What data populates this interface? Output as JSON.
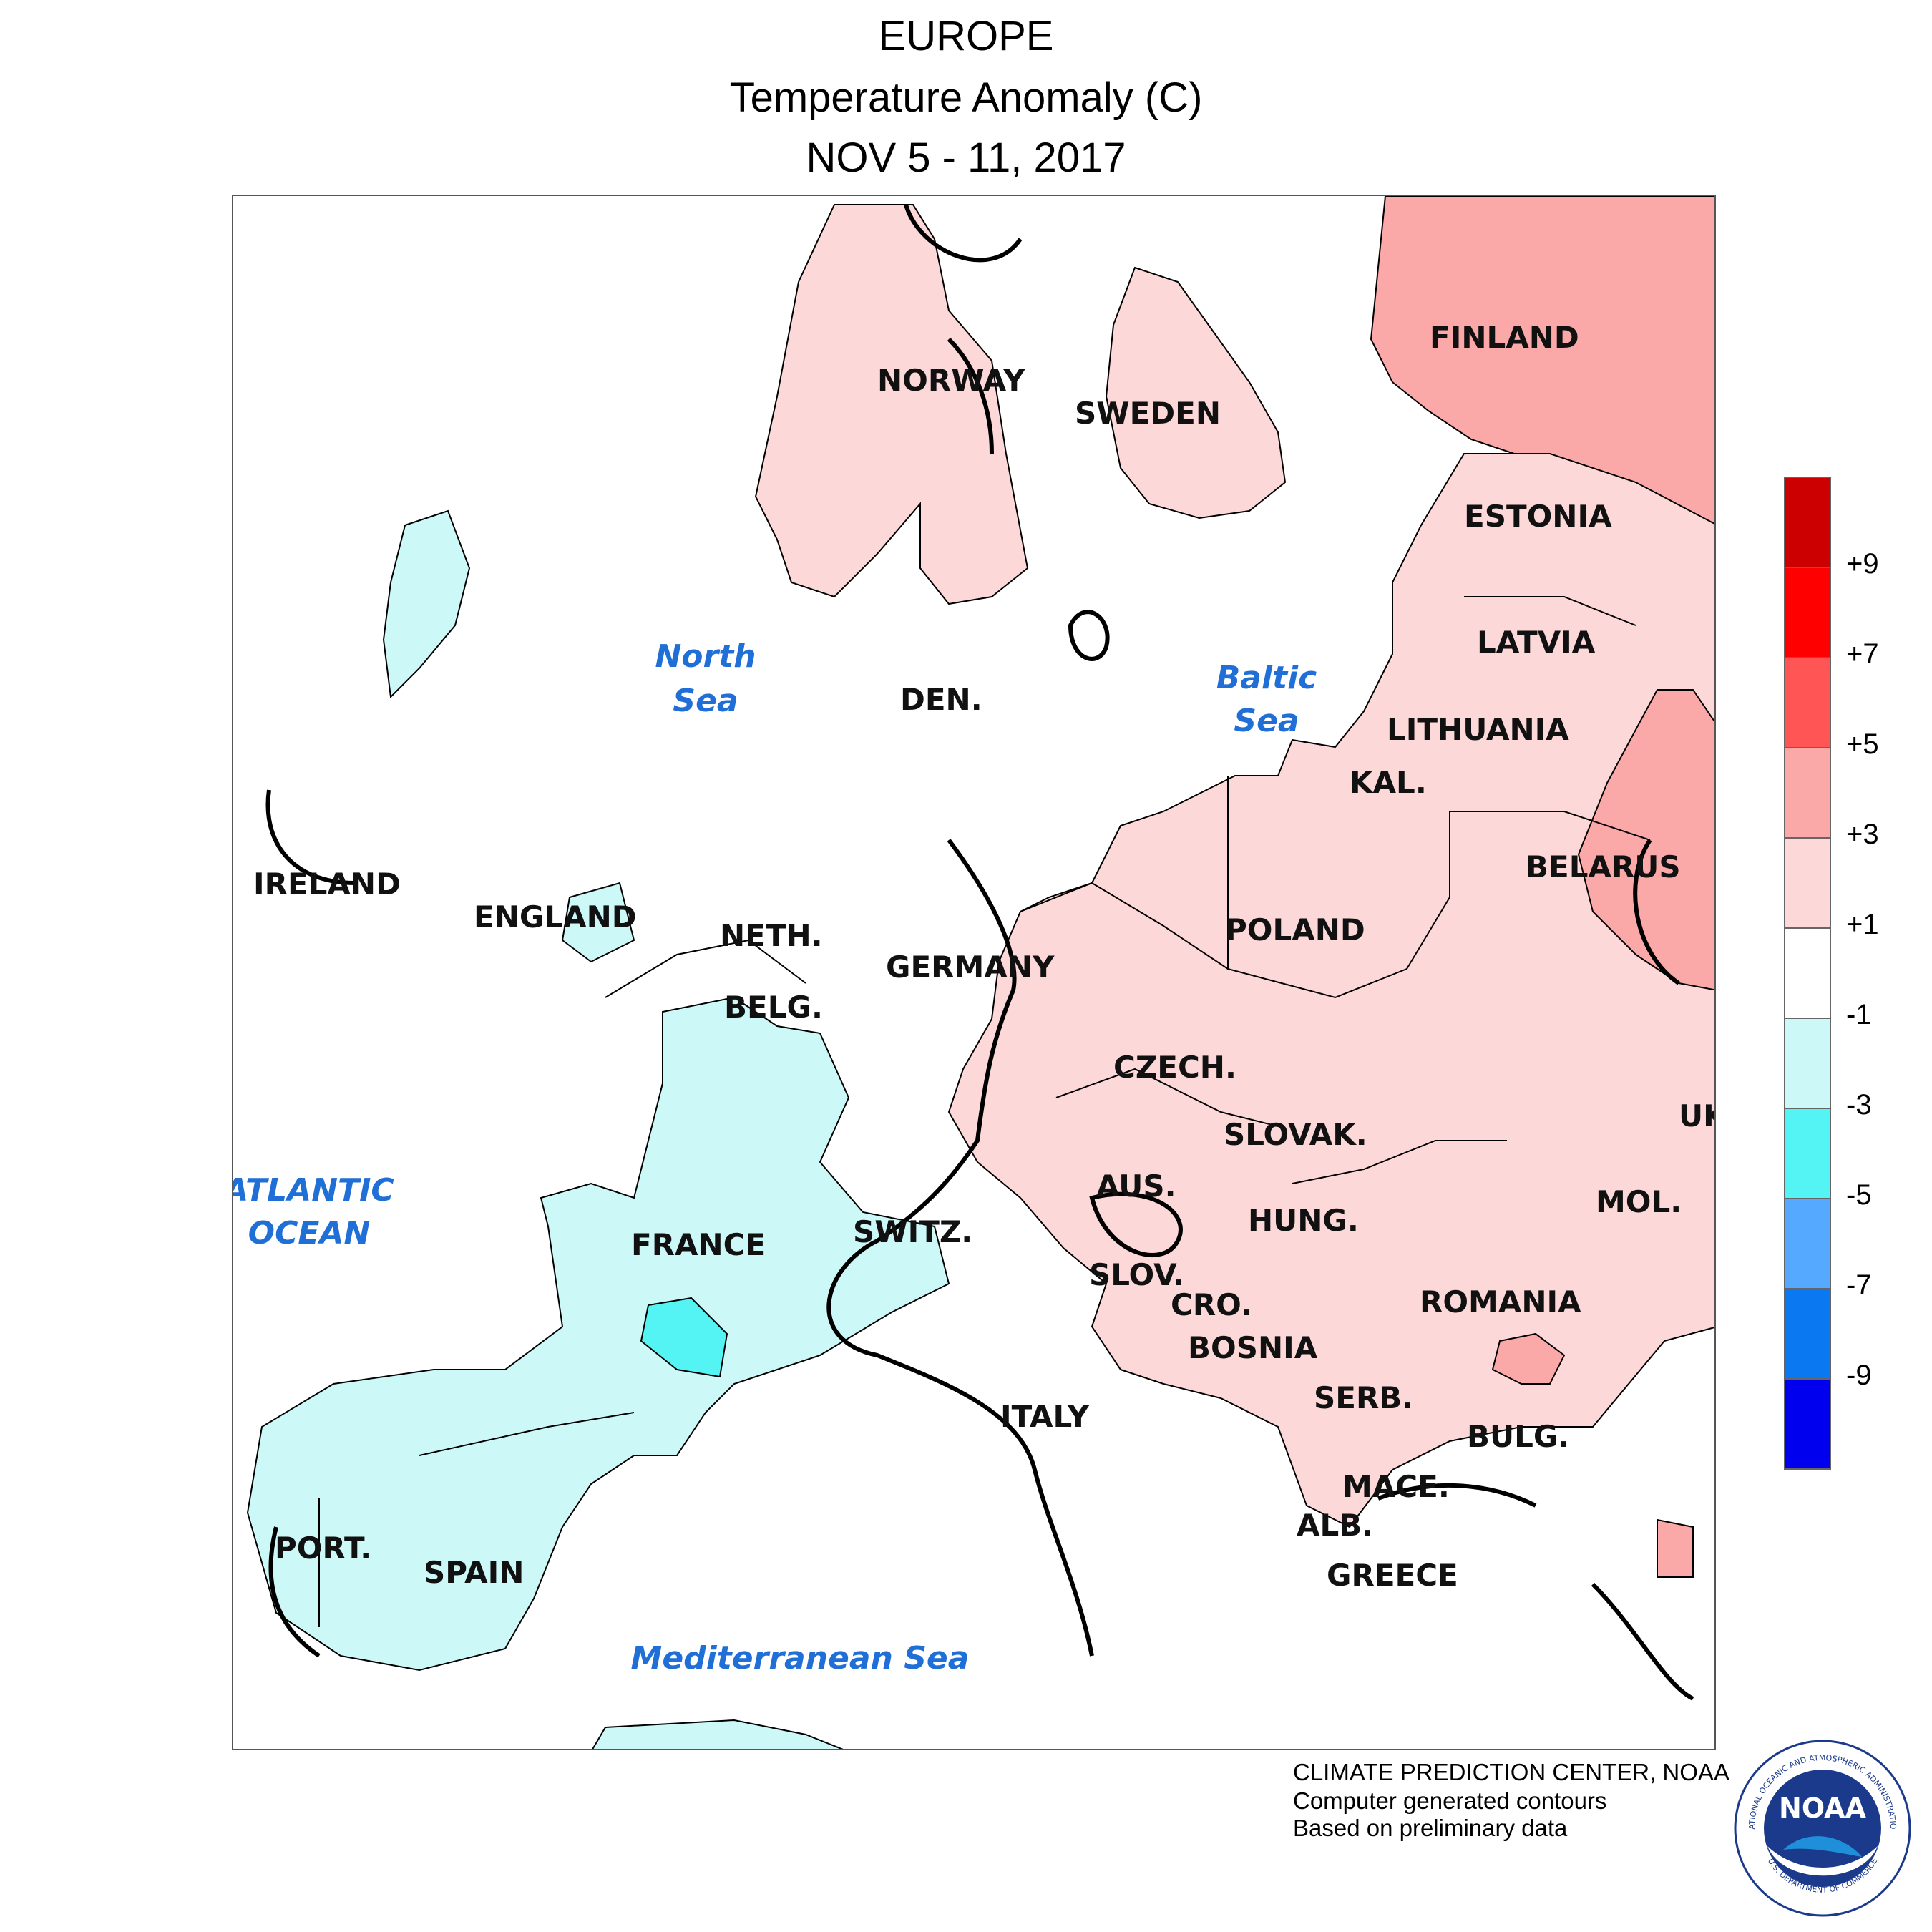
{
  "title": {
    "line1": "EUROPE",
    "line2": "Temperature Anomaly (C)",
    "line3": "NOV 5 - 11, 2017"
  },
  "countries": [
    {
      "id": "norway",
      "label": "NORWAY"
    },
    {
      "id": "sweden",
      "label": "SWEDEN"
    },
    {
      "id": "finland",
      "label": "FINLAND"
    },
    {
      "id": "estonia",
      "label": "ESTONIA"
    },
    {
      "id": "latvia",
      "label": "LATVIA"
    },
    {
      "id": "lithuania",
      "label": "LITHUANIA"
    },
    {
      "id": "kal",
      "label": "KAL."
    },
    {
      "id": "belarus",
      "label": "BELARUS"
    },
    {
      "id": "poland",
      "label": "POLAND"
    },
    {
      "id": "den",
      "label": "DEN."
    },
    {
      "id": "ireland",
      "label": "IRELAND"
    },
    {
      "id": "england",
      "label": "ENGLAND"
    },
    {
      "id": "neth",
      "label": "NETH."
    },
    {
      "id": "belg",
      "label": "BELG."
    },
    {
      "id": "germany",
      "label": "GERMANY"
    },
    {
      "id": "czech",
      "label": "CZECH."
    },
    {
      "id": "slovak",
      "label": "SLOVAK."
    },
    {
      "id": "uk",
      "label": "UK"
    },
    {
      "id": "aus",
      "label": "AUS."
    },
    {
      "id": "hung",
      "label": "HUNG."
    },
    {
      "id": "mol",
      "label": "MOL."
    },
    {
      "id": "france",
      "label": "FRANCE"
    },
    {
      "id": "switz",
      "label": "SWITZ."
    },
    {
      "id": "slov",
      "label": "SLOV."
    },
    {
      "id": "cro",
      "label": "CRO."
    },
    {
      "id": "romania",
      "label": "ROMANIA"
    },
    {
      "id": "bosnia",
      "label": "BOSNIA"
    },
    {
      "id": "serb",
      "label": "SERB."
    },
    {
      "id": "italy",
      "label": "ITALY"
    },
    {
      "id": "bulg",
      "label": "BULG."
    },
    {
      "id": "mace",
      "label": "MACE."
    },
    {
      "id": "alb",
      "label": "ALB."
    },
    {
      "id": "greece",
      "label": "GREECE"
    },
    {
      "id": "port",
      "label": "PORT."
    },
    {
      "id": "spain",
      "label": "SPAIN"
    }
  ],
  "seas": {
    "north_sea": [
      "North",
      "Sea"
    ],
    "baltic_sea": [
      "Baltic",
      "Sea"
    ],
    "atlantic": [
      "ATLANTIC",
      "OCEAN"
    ],
    "mediterranean": "Mediterranean Sea"
  },
  "legend": {
    "colors": [
      "#cc0000",
      "#ff0000",
      "#ff5555",
      "#fba8a8",
      "#fcd8d8",
      "#ffffff",
      "#cdf8f8",
      "#55f4f4",
      "#55aaff",
      "#0a78f0",
      "#0000ee"
    ],
    "ticks": [
      "+9",
      "+7",
      "+5",
      "+3",
      "+1",
      "-1",
      "-3",
      "-5",
      "-7",
      "-9"
    ]
  },
  "credits": {
    "line1": "CLIMATE PREDICTION CENTER, NOAA",
    "line2": "Computer generated contours",
    "line3": "Based on preliminary data"
  },
  "logo": {
    "text": "NOAA",
    "ring_text": "NATIONAL OCEANIC AND ATMOSPHERIC ADMINISTRATION",
    "ring_text_bottom": "U.S. DEPARTMENT OF COMMERCE"
  }
}
